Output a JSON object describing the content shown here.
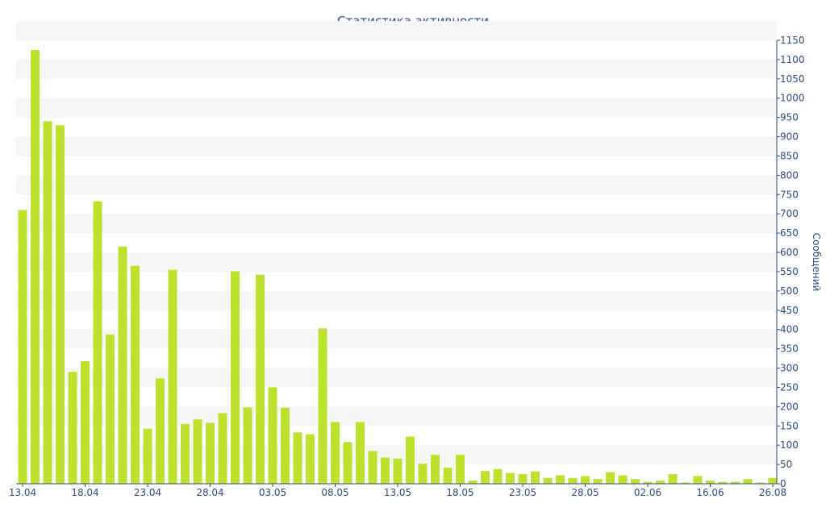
{
  "chart_data": {
    "type": "bar",
    "title": "Статистика активности",
    "xlabel": "",
    "ylabel": "Сообщений",
    "ylim": [
      0,
      1150
    ],
    "ytick_step": 50,
    "yaxis_side": "right",
    "grid": "alternating horizontal bands",
    "bar_color": "#bde22e",
    "text_color": "#2e4a86",
    "x_tick_labels": [
      "13.04",
      "18.04",
      "23.04",
      "28.04",
      "03.05",
      "08.05",
      "13.05",
      "18.05",
      "23.05",
      "28.05",
      "02.06",
      "16.06",
      "26.08"
    ],
    "x_tick_label_bar_index": [
      0,
      5,
      10,
      15,
      20,
      25,
      30,
      35,
      40,
      45,
      50,
      55,
      60
    ],
    "values": [
      710,
      1125,
      940,
      930,
      290,
      318,
      732,
      387,
      615,
      565,
      143,
      273,
      555,
      155,
      167,
      158,
      183,
      551,
      198,
      542,
      250,
      197,
      133,
      128,
      403,
      160,
      108,
      160,
      85,
      68,
      65,
      122,
      52,
      75,
      42,
      75,
      8,
      33,
      38,
      28,
      25,
      32,
      15,
      22,
      15,
      20,
      12,
      30,
      22,
      12,
      5,
      8,
      25,
      3,
      20,
      8,
      5,
      5,
      12,
      3,
      15
    ]
  }
}
